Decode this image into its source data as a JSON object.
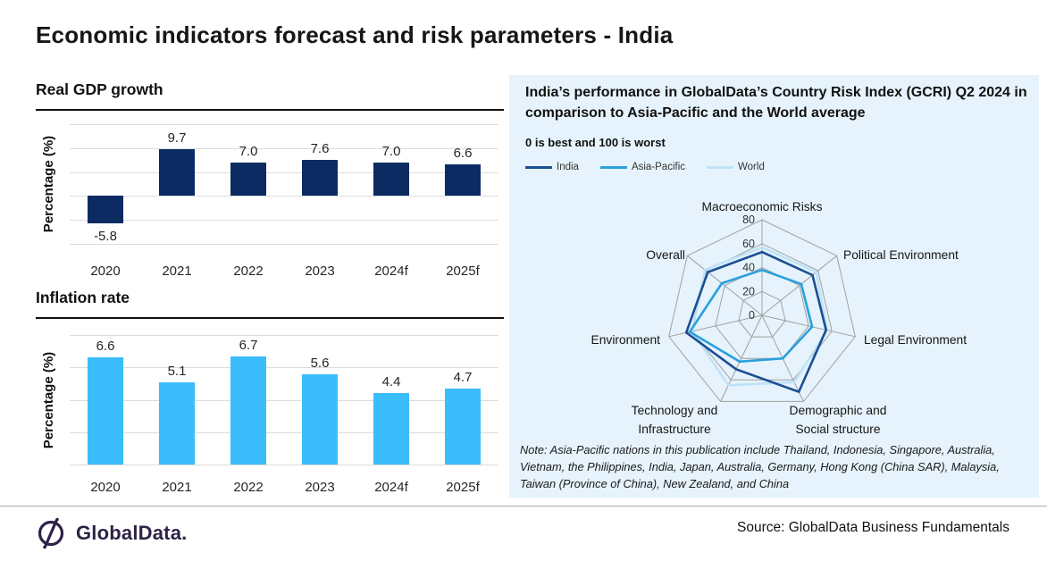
{
  "page_title": "Economic indicators forecast and risk parameters - India",
  "footer": {
    "logo_text": "GlobalData.",
    "source": "Source: GlobalData Business Fundamentals"
  },
  "colors": {
    "gdp_bar": "#0d2b63",
    "inflation_bar": "#3bbdfb",
    "india": "#1b4f94",
    "asia_pacific": "#2aa0dc",
    "world": "#bfe2f8",
    "panel_bg": "#e6f3fc",
    "bar_grid": "#dcdcdc",
    "radar_grid": "#a0a0a0",
    "logo_purple": "#2e2248"
  },
  "chart_data": [
    {
      "type": "bar",
      "title": "Real GDP growth",
      "ylabel": "Percentage (%)",
      "categories": [
        "2020",
        "2021",
        "2022",
        "2023",
        "2024f",
        "2025f"
      ],
      "values": [
        -5.8,
        9.7,
        7.0,
        7.6,
        7.0,
        6.6
      ],
      "value_labels": [
        "-5.8",
        "9.7",
        "7.0",
        "7.6",
        "7.0",
        "6.6"
      ],
      "ylim": [
        -10,
        15
      ],
      "grid_step": 5,
      "grid": true,
      "bar_color": "#0d2b63"
    },
    {
      "type": "bar",
      "title": "Inflation rate",
      "ylabel": "Percentage (%)",
      "categories": [
        "2020",
        "2021",
        "2022",
        "2023",
        "2024f",
        "2025f"
      ],
      "values": [
        6.6,
        5.1,
        6.7,
        5.6,
        4.4,
        4.7
      ],
      "value_labels": [
        "6.6",
        "5.1",
        "6.7",
        "5.6",
        "4.4",
        "4.7"
      ],
      "ylim": [
        0,
        8
      ],
      "grid_step": 2,
      "grid": true,
      "bar_color": "#3bbdfb"
    },
    {
      "type": "radar",
      "title": "India’s performance in GlobalData’s Country Risk Index (GCRI) Q2 2024 in comparison to Asia-Pacific and the World average",
      "subtitle": "0 is best and 100 is worst",
      "legend_position": "top-left",
      "categories": [
        "Macroeconomic Risks",
        "Political Environment",
        "Legal Environment",
        "Demographic and Social structure",
        "Technology and Infrastructure",
        "Environment",
        "Overall"
      ],
      "label_lines": [
        [
          "Macroeconomic Risks"
        ],
        [
          "Political Environment"
        ],
        [
          "Legal Environment"
        ],
        [
          "Demographic and",
          "Social structure"
        ],
        [
          "Technology and",
          "Infrastructure"
        ],
        [
          "Environment"
        ],
        [
          "Overall"
        ]
      ],
      "max": 80,
      "ticks": [
        0,
        20,
        40,
        60,
        80
      ],
      "series": [
        {
          "name": "India",
          "color": "#1b4f94",
          "values": [
            53,
            54,
            55,
            71,
            50,
            65,
            58
          ]
        },
        {
          "name": "Asia-Pacific",
          "color": "#2aa0dc",
          "values": [
            38,
            42,
            43,
            40,
            43,
            62,
            43
          ]
        },
        {
          "name": "World",
          "color": "#bfe2f8",
          "values": [
            57,
            58,
            56,
            62,
            65,
            60,
            61
          ]
        }
      ],
      "note": "Note: Asia-Pacific nations in this publication include Thailand, Indonesia, Singapore, Australia, Vietnam, the Philippines, India, Japan, Australia, Germany, Hong Kong (China SAR), Malaysia, Taiwan (Province of China), New Zealand, and China"
    }
  ]
}
